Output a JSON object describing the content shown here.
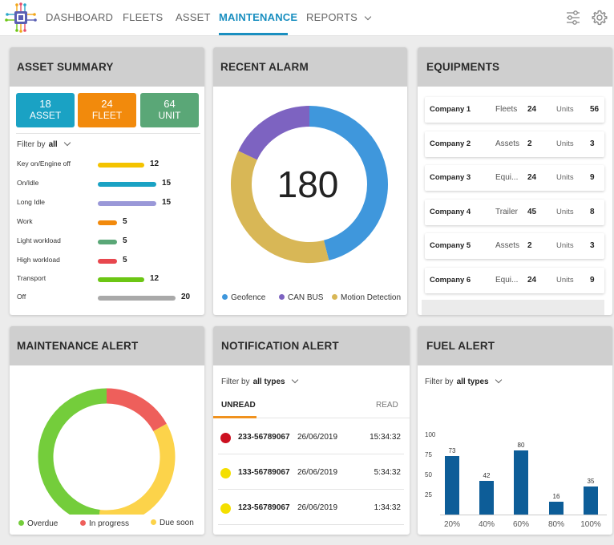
{
  "nav": {
    "items": [
      "DASHBOARD",
      "FLEETS",
      "ASSET",
      "MAINTENANCE",
      "REPORTS"
    ],
    "active": "MAINTENANCE"
  },
  "asset_summary": {
    "title": "ASSET SUMMARY",
    "tiles": [
      {
        "count": "18",
        "label": "ASSET",
        "color": "#1aa2c4"
      },
      {
        "count": "24",
        "label": "FLEET",
        "color": "#f28a0c"
      },
      {
        "count": "64",
        "label": "UNIT",
        "color": "#5aa777"
      }
    ],
    "filter_label": "Filter by",
    "filter_value": "all",
    "rows": [
      {
        "label": "Key on/Engine off",
        "value": 12,
        "color": "#f4c300"
      },
      {
        "label": "On/Idle",
        "value": 15,
        "color": "#1aa2c4"
      },
      {
        "label": "Long Idle",
        "value": 15,
        "color": "#9a98d8"
      },
      {
        "label": "Work",
        "value": 5,
        "color": "#f28a0c"
      },
      {
        "label": "Light workload",
        "value": 5,
        "color": "#5aa777"
      },
      {
        "label": "High workload",
        "value": 5,
        "color": "#e8474e"
      },
      {
        "label": "Transport",
        "value": 12,
        "color": "#6cc614"
      },
      {
        "label": "Off",
        "value": 20,
        "color": "#a9a9a9"
      }
    ]
  },
  "recent_alarm": {
    "title": "RECENT ALARM",
    "total": "180",
    "segments": [
      {
        "name": "Geofence",
        "share": 0.46,
        "color": "#3f97dc"
      },
      {
        "name": "Motion Detection",
        "share": 0.36,
        "color": "#d8b756"
      },
      {
        "name": "CAN BUS",
        "share": 0.18,
        "color": "#7d63c1"
      }
    ],
    "legend": [
      "Geofence",
      "CAN BUS",
      "Motion Detection"
    ]
  },
  "equipments": {
    "title": "EQUIPMENTS",
    "rows": [
      {
        "company": "Company 1",
        "type": "Fleets",
        "count": "24",
        "units_label": "Units",
        "units": "56"
      },
      {
        "company": "Company 2",
        "type": "Assets",
        "count": "2",
        "units_label": "Units",
        "units": "3"
      },
      {
        "company": "Company 3",
        "type": "Equi...",
        "count": "24",
        "units_label": "Units",
        "units": "9"
      },
      {
        "company": "Company 4",
        "type": "Trailer",
        "count": "45",
        "units_label": "Units",
        "units": "8"
      },
      {
        "company": "Company 5",
        "type": "Assets",
        "count": "2",
        "units_label": "Units",
        "units": "3"
      },
      {
        "company": "Company 6",
        "type": "Equi...",
        "count": "24",
        "units_label": "Units",
        "units": "9"
      }
    ]
  },
  "maintenance_alert": {
    "title": "MAINTENANCE ALERT",
    "segments": [
      {
        "name": "In progress",
        "share": 0.17,
        "color": "#ee5f5b"
      },
      {
        "name": "Due soon",
        "share": 0.35,
        "color": "#fcd34a"
      },
      {
        "name": "Overdue",
        "share": 0.48,
        "color": "#74cd3b"
      }
    ],
    "legend": [
      {
        "name": "Overdue",
        "color": "#74cd3b"
      },
      {
        "name": "In progress",
        "color": "#ee5f5b"
      },
      {
        "name": "Due soon",
        "color": "#fcd34a"
      }
    ]
  },
  "notification_alert": {
    "title": "NOTIFICATION ALERT",
    "filter_label": "Filter by",
    "filter_value": "all types",
    "tab_unread": "UNREAD",
    "tab_read": "READ",
    "rows": [
      {
        "id": "233-56789067",
        "date": "26/06/2019",
        "time": "15:34:32",
        "color": "#cc1020"
      },
      {
        "id": "133-56789067",
        "date": "26/06/2019",
        "time": "5:34:32",
        "color": "#f4df00"
      },
      {
        "id": "123-56789067",
        "date": "26/06/2019",
        "time": "1:34:32",
        "color": "#f4df00"
      }
    ]
  },
  "fuel_alert": {
    "title": "FUEL ALERT",
    "filter_label": "Filter by",
    "filter_value": "all types"
  },
  "chart_data": {
    "type": "bar",
    "categories": [
      "20%",
      "40%",
      "60%",
      "80%",
      "100%"
    ],
    "values": [
      73,
      42,
      80,
      16,
      35
    ],
    "yticks": [
      25,
      50,
      75,
      100
    ],
    "ylim": [
      0,
      100
    ],
    "color": "#0d5d98",
    "title": "",
    "xlabel": "",
    "ylabel": ""
  }
}
